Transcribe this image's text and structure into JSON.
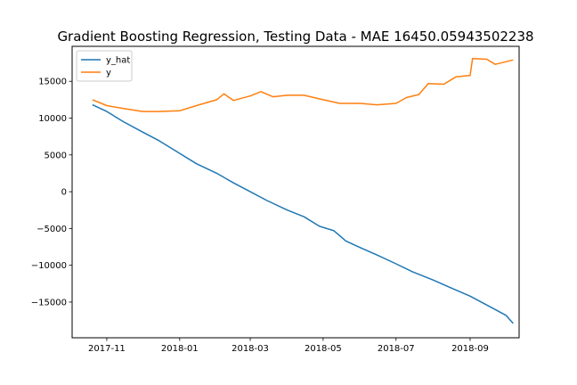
{
  "chart_data": {
    "type": "line",
    "title": "Gradient Boosting Regression, Testing Data - MAE 16450.05943502238",
    "xlabel": "",
    "ylabel": "",
    "x_axis": "date",
    "xlim": [
      "2017-10-03",
      "2018-10-12"
    ],
    "ylim": [
      -19850,
      19750
    ],
    "x_ticks": [
      {
        "date": "2017-11-01",
        "label": "2017-11"
      },
      {
        "date": "2018-01-01",
        "label": "2018-01"
      },
      {
        "date": "2018-03-01",
        "label": "2018-03"
      },
      {
        "date": "2018-05-01",
        "label": "2018-05"
      },
      {
        "date": "2018-07-01",
        "label": "2018-07"
      },
      {
        "date": "2018-09-01",
        "label": "2018-09"
      }
    ],
    "y_ticks": [
      -15000,
      -10000,
      -5000,
      0,
      5000,
      10000,
      15000
    ],
    "y_tick_labels": [
      "−15000",
      "−10000",
      "−5000",
      "0",
      "5000",
      "10000",
      "15000"
    ],
    "legend_position": "upper-left",
    "grid": false,
    "series": [
      {
        "name": "y_hat",
        "color": "#1f77b4",
        "points": [
          [
            "2017-10-20",
            11800
          ],
          [
            "2017-11-01",
            10900
          ],
          [
            "2017-11-15",
            9500
          ],
          [
            "2017-12-01",
            8100
          ],
          [
            "2017-12-15",
            6900
          ],
          [
            "2018-01-01",
            5200
          ],
          [
            "2018-01-15",
            3800
          ],
          [
            "2018-02-01",
            2500
          ],
          [
            "2018-02-15",
            1200
          ],
          [
            "2018-03-01",
            0
          ],
          [
            "2018-03-15",
            -1200
          ],
          [
            "2018-04-01",
            -2500
          ],
          [
            "2018-04-15",
            -3400
          ],
          [
            "2018-04-28",
            -4700
          ],
          [
            "2018-05-10",
            -5300
          ],
          [
            "2018-05-20",
            -6700
          ],
          [
            "2018-06-01",
            -7600
          ],
          [
            "2018-06-15",
            -8600
          ],
          [
            "2018-07-01",
            -9800
          ],
          [
            "2018-07-15",
            -10900
          ],
          [
            "2018-08-01",
            -12000
          ],
          [
            "2018-08-15",
            -13000
          ],
          [
            "2018-09-01",
            -14200
          ],
          [
            "2018-09-15",
            -15400
          ],
          [
            "2018-10-01",
            -16800
          ],
          [
            "2018-10-07",
            -17900
          ]
        ]
      },
      {
        "name": "y",
        "color": "#ff7f0e",
        "points": [
          [
            "2017-10-20",
            12500
          ],
          [
            "2017-11-01",
            11700
          ],
          [
            "2017-11-15",
            11300
          ],
          [
            "2017-12-01",
            10900
          ],
          [
            "2017-12-15",
            10900
          ],
          [
            "2018-01-01",
            11000
          ],
          [
            "2018-01-15",
            11700
          ],
          [
            "2018-02-01",
            12500
          ],
          [
            "2018-02-07",
            13300
          ],
          [
            "2018-02-15",
            12400
          ],
          [
            "2018-03-01",
            13000
          ],
          [
            "2018-03-10",
            13600
          ],
          [
            "2018-03-20",
            12900
          ],
          [
            "2018-04-01",
            13100
          ],
          [
            "2018-04-15",
            13100
          ],
          [
            "2018-05-01",
            12500
          ],
          [
            "2018-05-15",
            12000
          ],
          [
            "2018-06-01",
            12000
          ],
          [
            "2018-06-15",
            11800
          ],
          [
            "2018-07-01",
            12000
          ],
          [
            "2018-07-10",
            12800
          ],
          [
            "2018-07-20",
            13200
          ],
          [
            "2018-07-28",
            14700
          ],
          [
            "2018-08-10",
            14600
          ],
          [
            "2018-08-20",
            15600
          ],
          [
            "2018-09-01",
            15800
          ],
          [
            "2018-09-03",
            18100
          ],
          [
            "2018-09-15",
            18000
          ],
          [
            "2018-09-22",
            17300
          ],
          [
            "2018-10-07",
            17900
          ]
        ]
      }
    ]
  }
}
